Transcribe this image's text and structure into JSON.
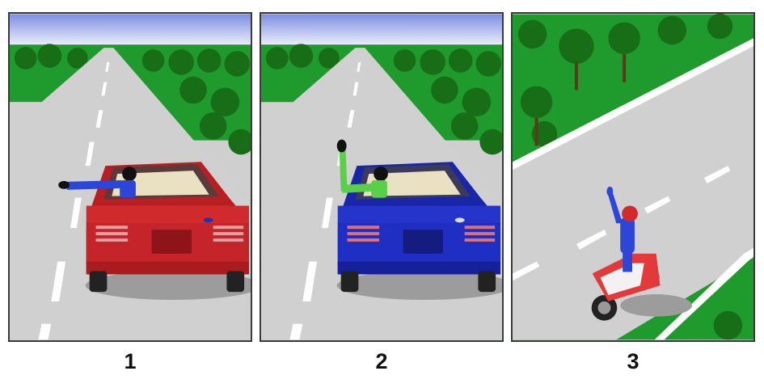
{
  "panels": [
    {
      "number": "1",
      "vehicle": "car",
      "car_color": "#c8262a",
      "arm_signal": "left-arm-extended-horizontally"
    },
    {
      "number": "2",
      "vehicle": "car",
      "car_color": "#1f2fc4",
      "arm_signal": "left-arm-bent-upward"
    },
    {
      "number": "3",
      "vehicle": "motorcycle",
      "arm_signal": "left-arm-raised-upward"
    }
  ],
  "colors": {
    "grass": "#1f9a2c",
    "road": "#cfcfcf",
    "sky": "#7f8fe0",
    "tree": "#1d7a1d"
  }
}
